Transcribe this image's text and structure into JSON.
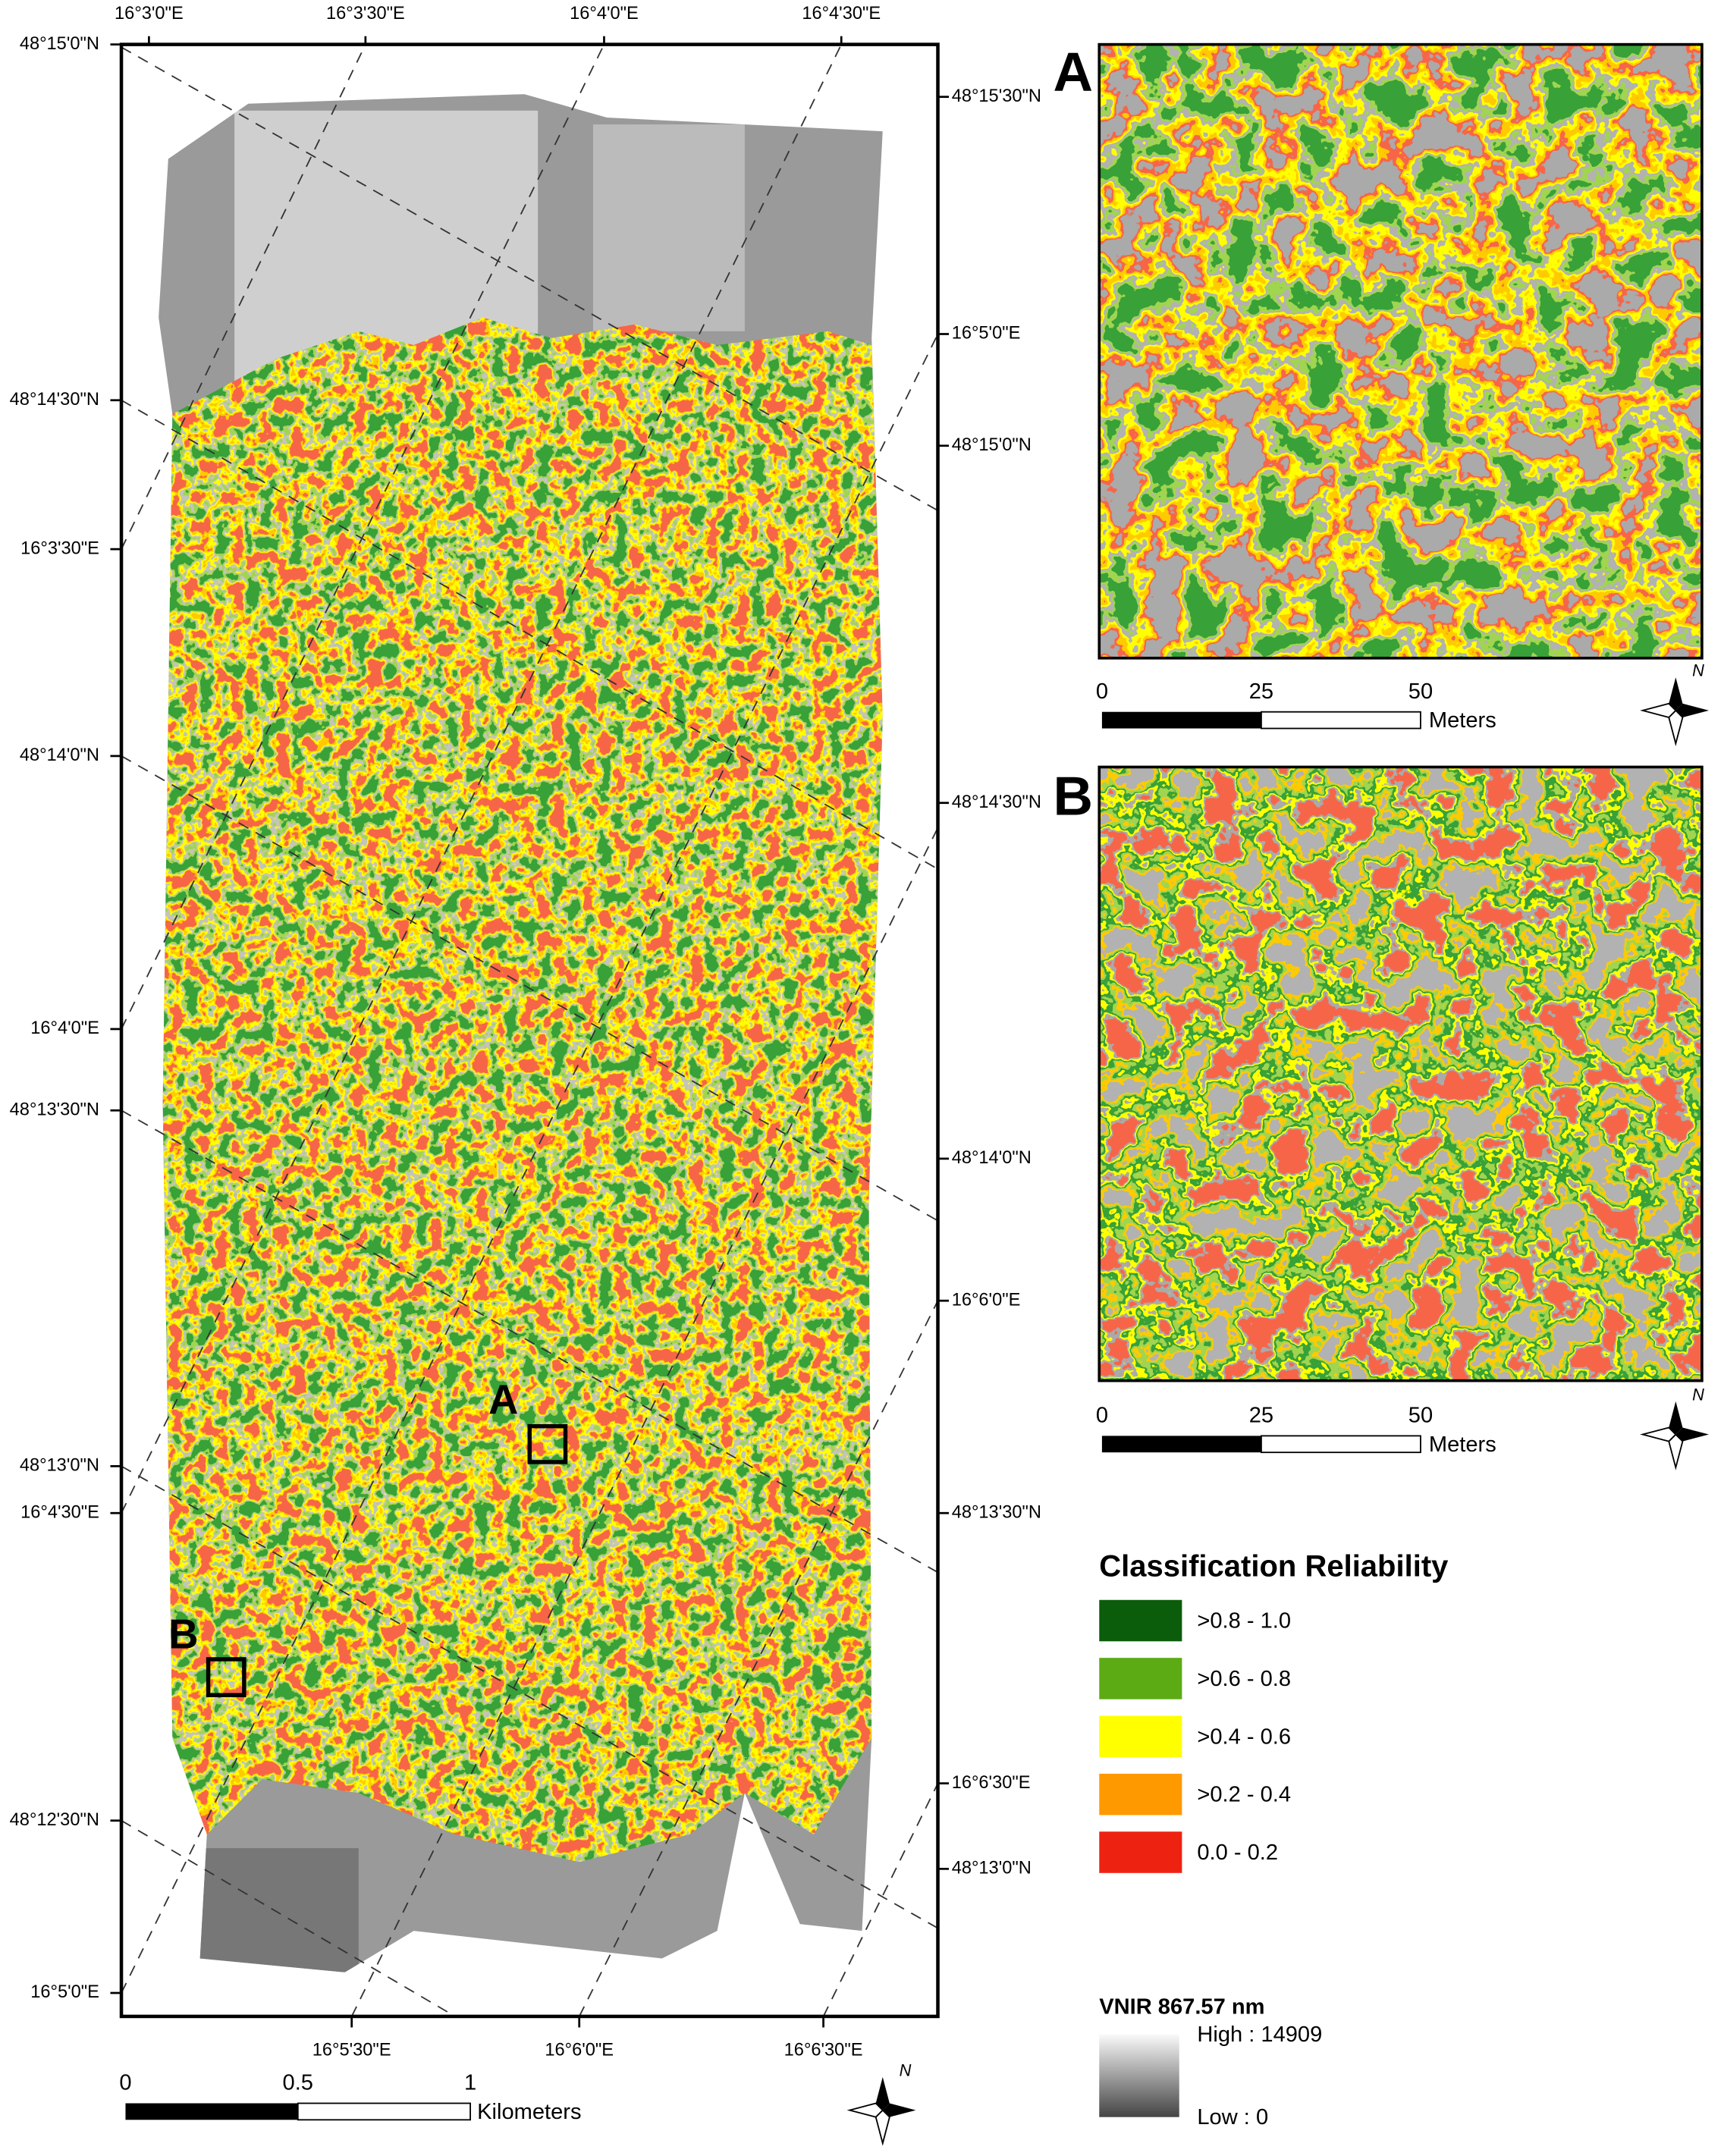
{
  "map": {
    "frame_labels": {
      "top": [
        "16°3'0\"E",
        "16°3'30\"E",
        "16°4'0\"E",
        "16°4'30\"E"
      ],
      "left": [
        "48°15'0\"N",
        "48°14'30\"N",
        "16°3'30\"E",
        "48°14'0\"N",
        "16°4'0\"E",
        "48°13'30\"N",
        "48°13'0\"N",
        "16°4'30\"E",
        "48°12'30\"N",
        "16°5'0\"E"
      ],
      "right": [
        "48°15'30\"N",
        "16°5'0\"E",
        "48°15'0\"N",
        "48°14'30\"N",
        "48°14'0\"N",
        "16°6'0\"E",
        "48°13'30\"N",
        "16°6'30\"E",
        "48°13'0\"N"
      ],
      "bottom": [
        "16°5'30\"E",
        "16°6'0\"E",
        "16°6'30\"E"
      ]
    },
    "site_labels": [
      "A",
      "B"
    ],
    "scale": {
      "ticks": [
        "0",
        "0.5",
        "1"
      ],
      "unit": "Kilometers"
    },
    "north": "N"
  },
  "insets": [
    {
      "label": "A",
      "scale": {
        "ticks": [
          "0",
          "25",
          "50"
        ],
        "unit": "Meters"
      },
      "north": "N"
    },
    {
      "label": "B",
      "scale": {
        "ticks": [
          "0",
          "25",
          "50"
        ],
        "unit": "Meters"
      },
      "north": "N"
    }
  ],
  "legend": {
    "title": "Classification Reliability",
    "items": [
      {
        "label": ">0.8 - 1.0",
        "color": "#0b5c0b"
      },
      {
        "label": ">0.6 - 0.8",
        "color": "#5cab15"
      },
      {
        "label": ">0.4 - 0.6",
        "color": "#ffff00"
      },
      {
        "label": ">0.2 - 0.4",
        "color": "#ff9900"
      },
      {
        "label": "0.0 - 0.2",
        "color": "#ee2211"
      }
    ]
  },
  "vnir": {
    "title": "VNIR 867.57 nm",
    "high": "High : 14909",
    "low": "Low : 0"
  }
}
